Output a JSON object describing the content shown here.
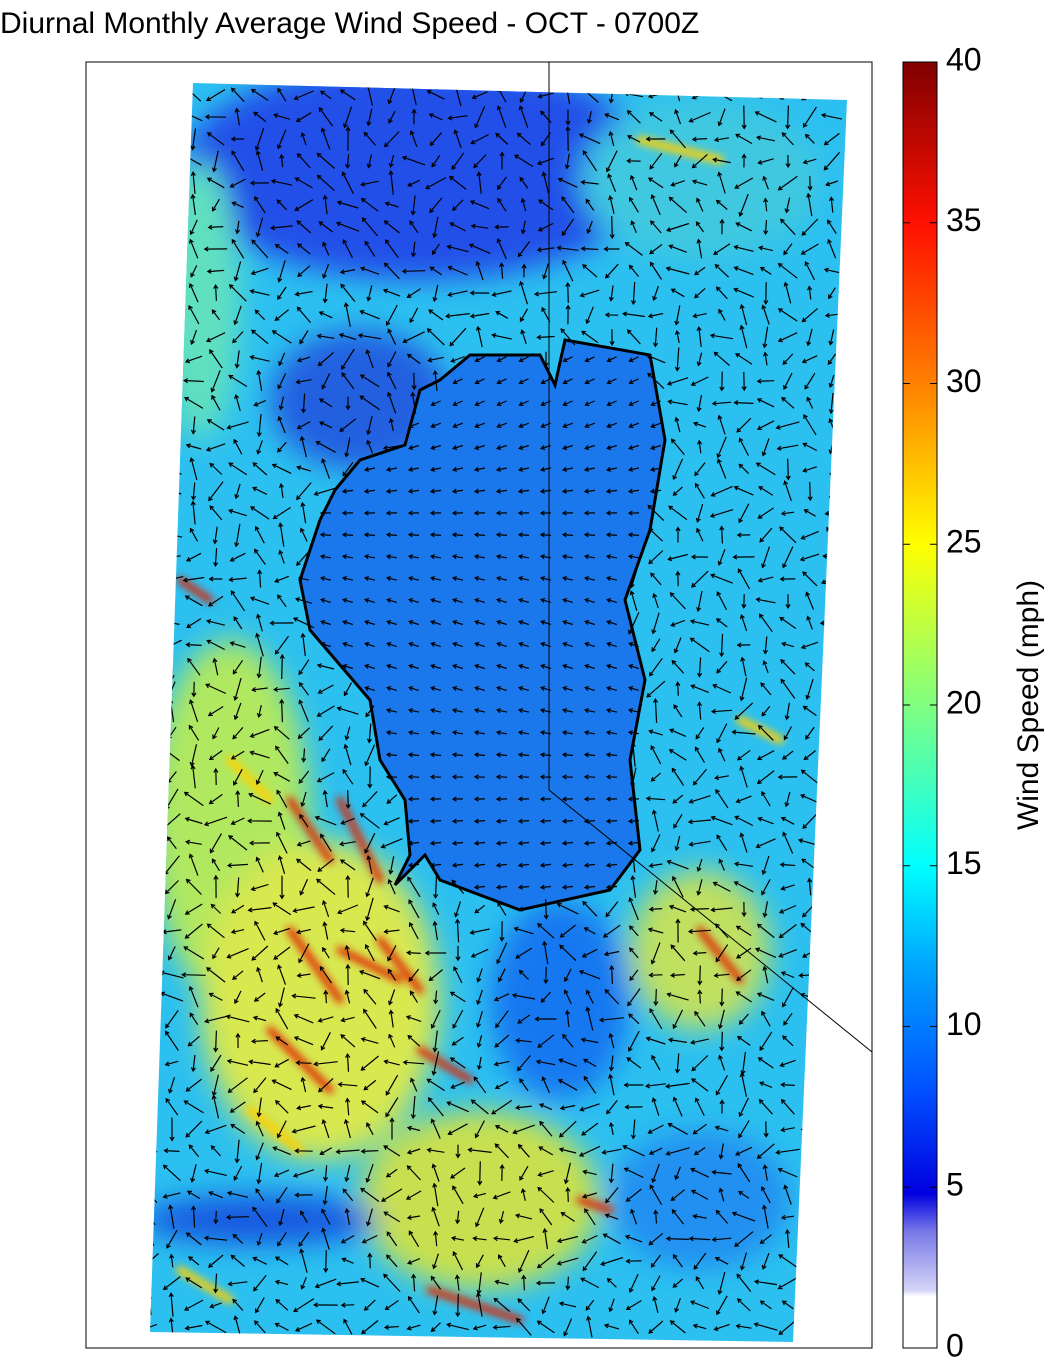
{
  "title": "Diurnal Monthly Average Wind Speed - OCT - 0700Z",
  "colorbar": {
    "label": "Wind Speed (mph)",
    "lim": [
      0,
      40
    ],
    "ticks": [
      0,
      5,
      10,
      15,
      20,
      25,
      30,
      35,
      40
    ]
  }
}
